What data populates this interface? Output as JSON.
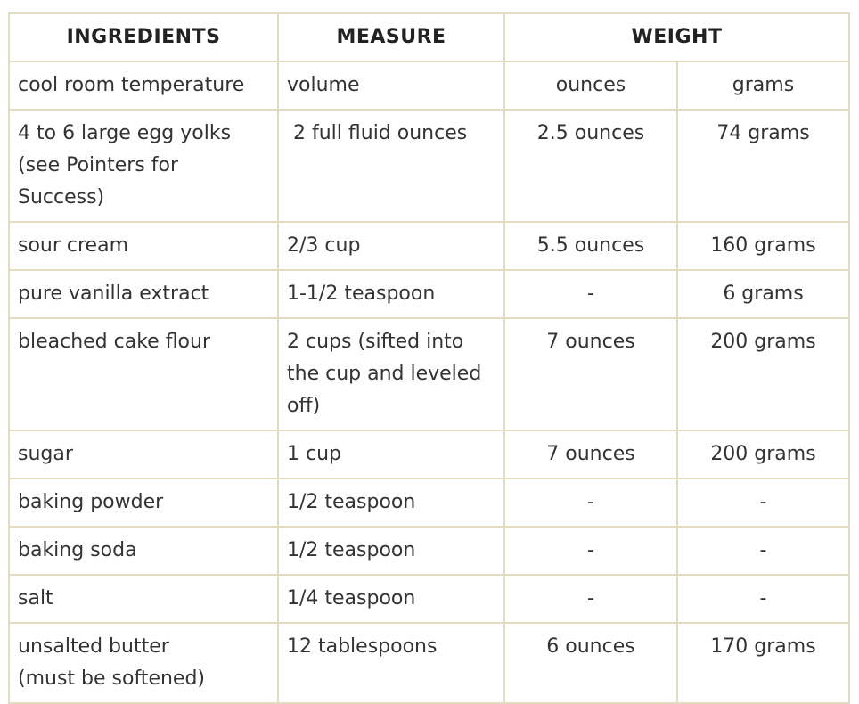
{
  "table": {
    "headers": {
      "ingredients": "INGREDIENTS",
      "measure": "MEASURE",
      "weight": "WEIGHT"
    },
    "subheaders": {
      "ingredients": "cool room temperature",
      "measure": "volume",
      "ounces": "ounces",
      "grams": "grams"
    },
    "rows": [
      {
        "ingredient": "4 to 6 large egg yolks\n(see Pointers for\nSuccess)",
        "measure": " 2 full fluid ounces",
        "ounces": "2.5 ounces",
        "grams": "74 grams"
      },
      {
        "ingredient": "sour cream",
        "measure": "2/3 cup",
        "ounces": "5.5 ounces",
        "grams": "160 grams"
      },
      {
        "ingredient": "pure vanilla extract",
        "measure": "1-1/2 teaspoon",
        "ounces": "-",
        "grams": "6 grams"
      },
      {
        "ingredient": "bleached cake flour",
        "measure": "2 cups (sifted into\nthe cup and leveled\noff)",
        "ounces": "7 ounces",
        "grams": "200 grams"
      },
      {
        "ingredient": "sugar",
        "measure": "1 cup",
        "ounces": "7 ounces",
        "grams": "200 grams"
      },
      {
        "ingredient": "baking powder",
        "measure": "1/2 teaspoon",
        "ounces": "-",
        "grams": "-"
      },
      {
        "ingredient": "baking soda",
        "measure": "1/2 teaspoon",
        "ounces": "-",
        "grams": "-"
      },
      {
        "ingredient": "salt",
        "measure": "1/4 teaspoon",
        "ounces": "-",
        "grams": "-"
      },
      {
        "ingredient": "unsalted butter\n(must be softened)",
        "measure": "12 tablespoons",
        "ounces": "6 ounces",
        "grams": "170 grams"
      }
    ]
  }
}
